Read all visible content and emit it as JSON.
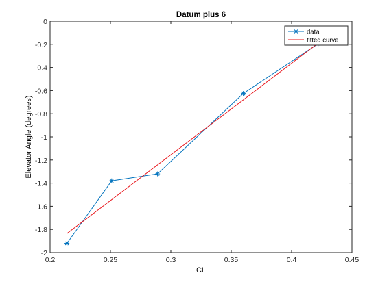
{
  "chart_data": {
    "type": "line",
    "title": "Datum plus 6",
    "xlabel": "CL",
    "ylabel": "Elevator Angle (degrees)",
    "xlim": [
      0.2,
      0.45
    ],
    "ylim": [
      -2,
      0
    ],
    "xticks": [
      0.2,
      0.25,
      0.3,
      0.35,
      0.4,
      0.45
    ],
    "yticks": [
      0,
      -0.2,
      -0.4,
      -0.6,
      -0.8,
      -1,
      -1.2,
      -1.4,
      -1.6,
      -1.8,
      -2
    ],
    "xtick_labels": [
      "0.2",
      "0.25",
      "0.3",
      "0.35",
      "0.4",
      "0.45"
    ],
    "ytick_labels": [
      "0",
      "-0.2",
      "-0.4",
      "-0.6",
      "-0.8",
      "-1",
      "-1.2",
      "-1.4",
      "-1.6",
      "-1.8",
      "-2"
    ],
    "grid": false,
    "legend_position": "top-right",
    "series": [
      {
        "name": "data",
        "style": "line-with-star-markers",
        "color": "#0072BD",
        "x": [
          0.214,
          0.251,
          0.289,
          0.36,
          0.422
        ],
        "y": [
          -1.92,
          -1.38,
          -1.32,
          -0.625,
          -0.195
        ]
      },
      {
        "name": "fitted curve",
        "style": "line",
        "color": "#E8141A",
        "x": [
          0.214,
          0.422
        ],
        "y": [
          -1.835,
          -0.19
        ]
      }
    ]
  }
}
